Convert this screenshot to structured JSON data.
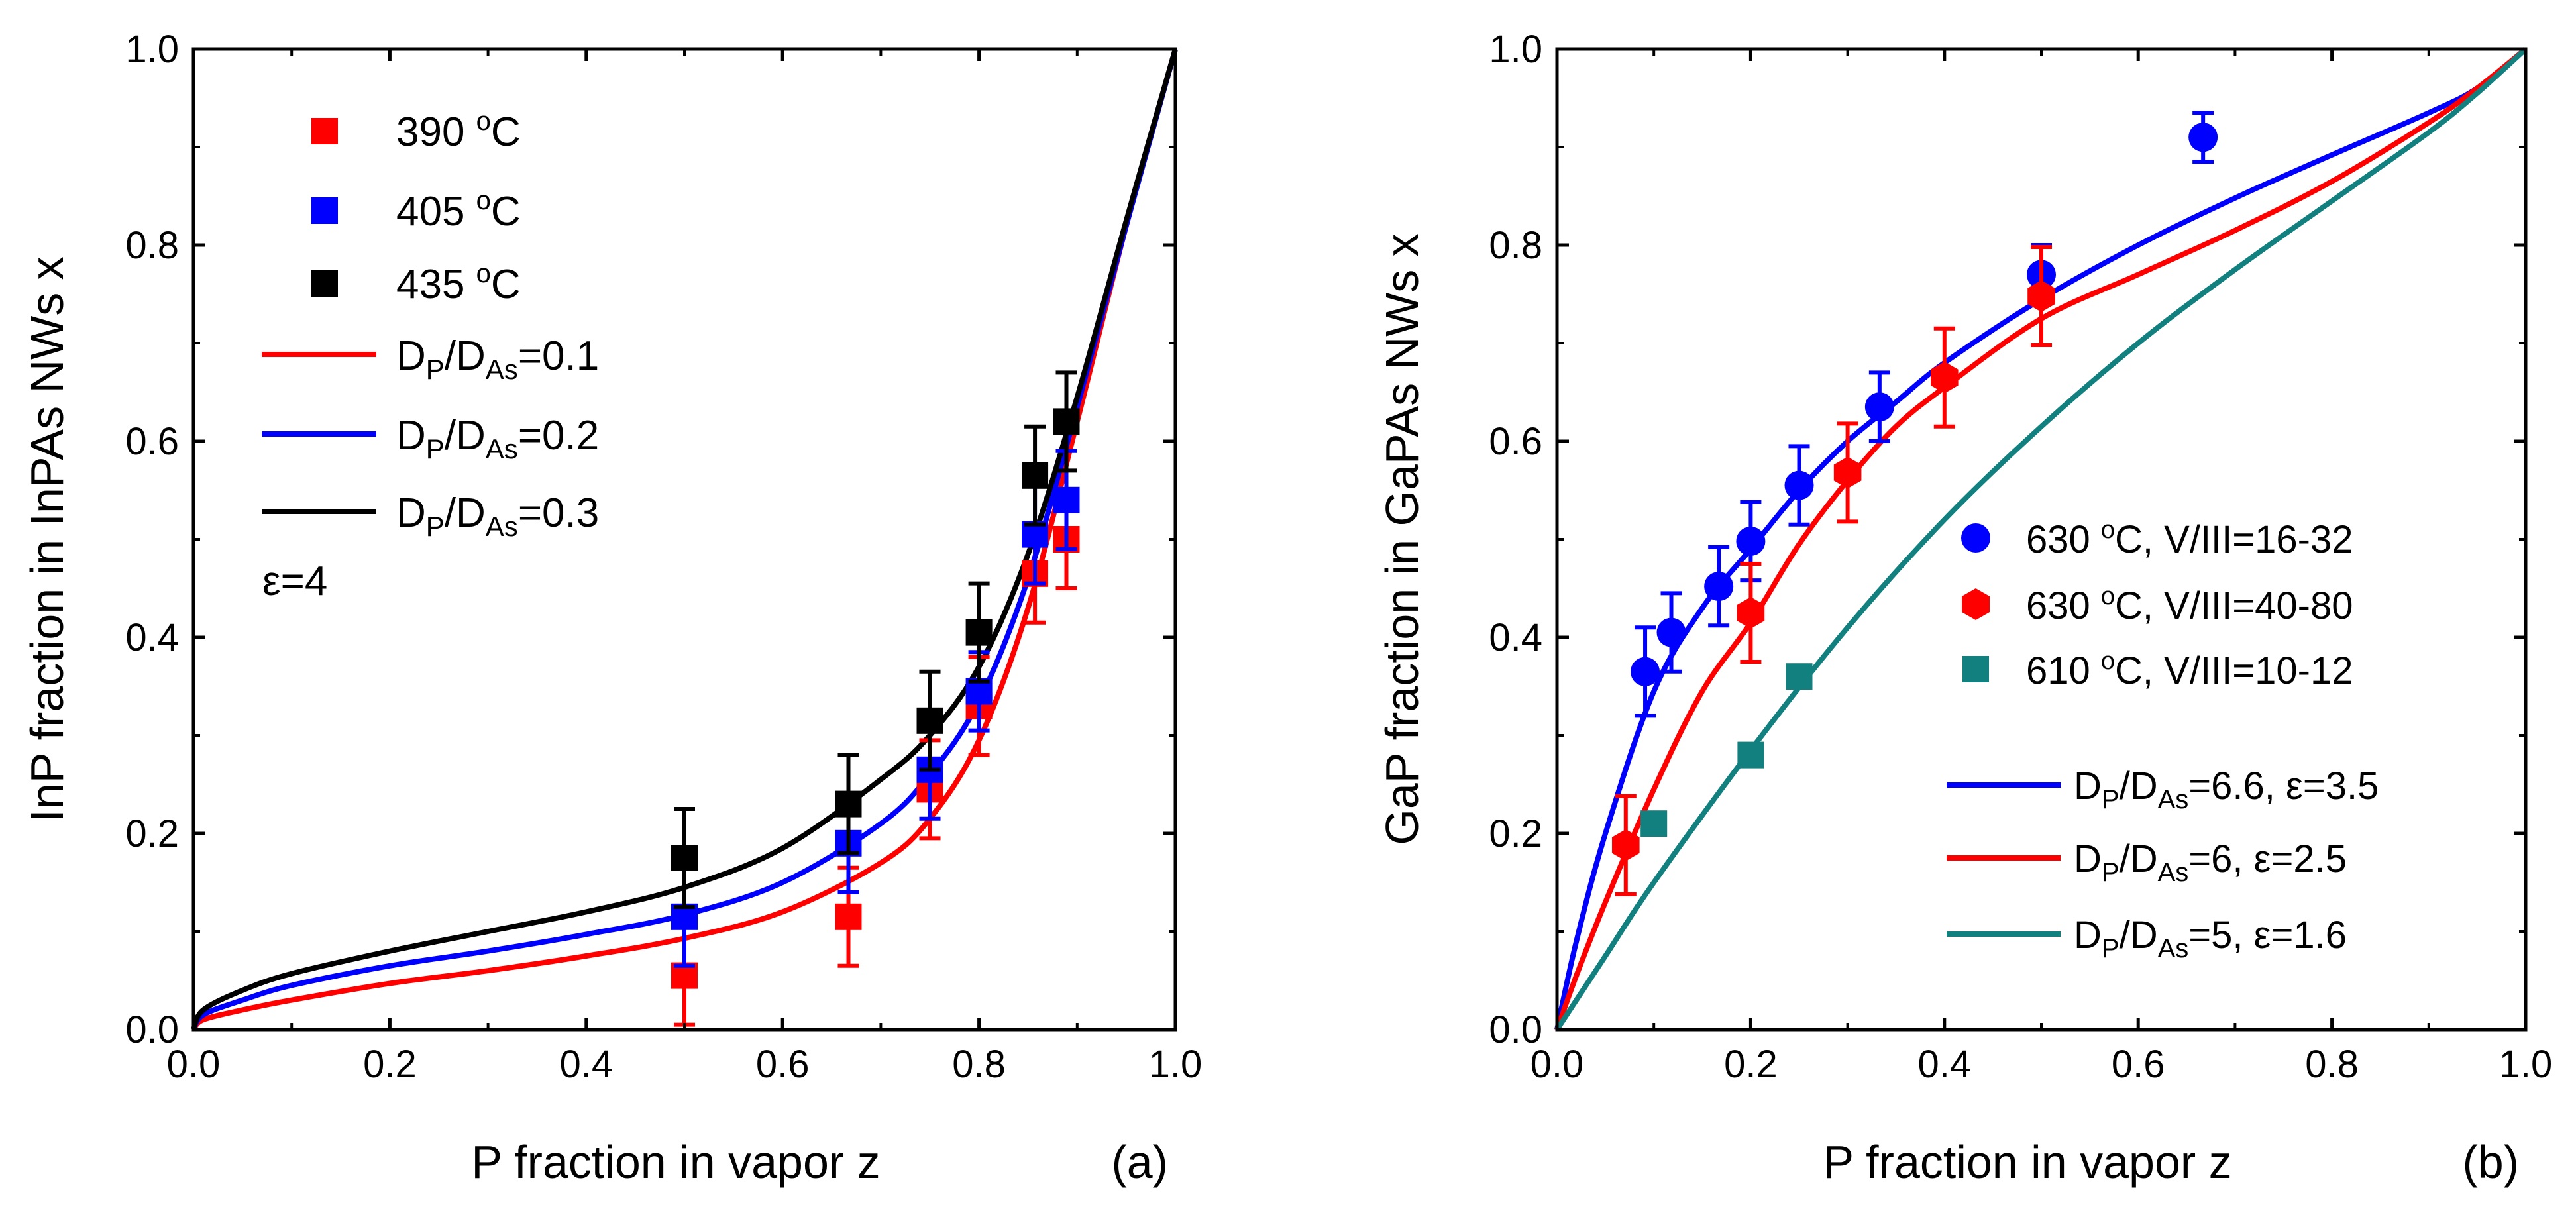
{
  "chart_data": [
    {
      "type": "scatter",
      "panel_label": "(a)",
      "xlabel": "P fraction in vapor z",
      "ylabel": "InP fraction in InPAs NWs x",
      "xlim": [
        0.0,
        1.0
      ],
      "ylim": [
        0.0,
        1.0
      ],
      "xticks": [
        "0.0",
        "0.2",
        "0.4",
        "0.6",
        "0.8",
        "1.0"
      ],
      "yticks": [
        "0.0",
        "0.2",
        "0.4",
        "0.6",
        "0.8",
        "1.0"
      ],
      "legend_position": "top-left",
      "note": {
        "text": "ε=4"
      },
      "series": [
        {
          "name": "390 °C",
          "label_main": "390 ",
          "label_sup": "o",
          "label_tail": "C",
          "color": "#ff0000",
          "marker": "square",
          "x": [
            0.5,
            0.667,
            0.75,
            0.8,
            0.857,
            0.889
          ],
          "y": [
            0.055,
            0.115,
            0.245,
            0.33,
            0.465,
            0.5
          ],
          "err": [
            0.05,
            0.05,
            0.05,
            0.05,
            0.05,
            0.05
          ]
        },
        {
          "name": "405 °C",
          "label_main": "405 ",
          "label_sup": "o",
          "label_tail": "C",
          "color": "#0000ff",
          "marker": "square",
          "x": [
            0.5,
            0.667,
            0.75,
            0.8,
            0.857,
            0.889
          ],
          "y": [
            0.115,
            0.19,
            0.265,
            0.345,
            0.505,
            0.54
          ],
          "err": [
            0.05,
            0.05,
            0.05,
            0.04,
            0.05,
            0.05
          ]
        },
        {
          "name": "435 °C",
          "label_main": "435 ",
          "label_sup": "o",
          "label_tail": "C",
          "color": "#000000",
          "marker": "square",
          "x": [
            0.5,
            0.667,
            0.75,
            0.8,
            0.857,
            0.889
          ],
          "y": [
            0.175,
            0.23,
            0.315,
            0.405,
            0.565,
            0.62
          ],
          "err": [
            0.05,
            0.05,
            0.05,
            0.05,
            0.05,
            0.05
          ]
        }
      ],
      "lines": [
        {
          "name": "DP/DAs=0.1",
          "label_sub1": "P",
          "label_mid": "/D",
          "label_sub2": "As",
          "label_tail": "=0.1",
          "color": "#ff0000",
          "x": [
            0.0,
            0.01,
            0.05,
            0.1,
            0.2,
            0.3,
            0.4,
            0.5,
            0.6,
            0.7,
            0.75,
            0.8,
            0.85,
            0.9,
            0.95,
            1.0
          ],
          "y": [
            0.0,
            0.01,
            0.02,
            0.03,
            0.047,
            0.06,
            0.075,
            0.093,
            0.12,
            0.17,
            0.215,
            0.295,
            0.43,
            0.62,
            0.82,
            1.0
          ]
        },
        {
          "name": "DP/DAs=0.2",
          "label_sub1": "P",
          "label_mid": "/D",
          "label_sub2": "As",
          "label_tail": "=0.2",
          "color": "#0000ff",
          "x": [
            0.0,
            0.01,
            0.05,
            0.1,
            0.2,
            0.3,
            0.4,
            0.5,
            0.6,
            0.7,
            0.75,
            0.8,
            0.85,
            0.9,
            0.95,
            1.0
          ],
          "y": [
            0.0,
            0.015,
            0.03,
            0.045,
            0.065,
            0.08,
            0.097,
            0.117,
            0.15,
            0.21,
            0.26,
            0.335,
            0.46,
            0.635,
            0.82,
            1.0
          ]
        },
        {
          "name": "DP/DAs=0.3",
          "label_sub1": "P",
          "label_mid": "/D",
          "label_sub2": "As",
          "label_tail": "=0.3",
          "color": "#000000",
          "x": [
            0.0,
            0.01,
            0.05,
            0.1,
            0.2,
            0.3,
            0.4,
            0.5,
            0.6,
            0.7,
            0.75,
            0.8,
            0.85,
            0.9,
            0.95,
            1.0
          ],
          "y": [
            0.0,
            0.02,
            0.04,
            0.057,
            0.08,
            0.1,
            0.12,
            0.145,
            0.185,
            0.255,
            0.3,
            0.37,
            0.485,
            0.645,
            0.825,
            1.0
          ]
        }
      ]
    },
    {
      "type": "scatter",
      "panel_label": "(b)",
      "xlabel": "P fraction in vapor z",
      "ylabel": "GaP fraction in GaPAs NWs x",
      "xlim": [
        0.0,
        1.0
      ],
      "ylim": [
        0.0,
        1.0
      ],
      "xticks": [
        "0.0",
        "0.2",
        "0.4",
        "0.6",
        "0.8",
        "1.0"
      ],
      "yticks": [
        "0.0",
        "0.2",
        "0.4",
        "0.6",
        "0.8",
        "1.0"
      ],
      "legend_position": "bottom-right",
      "series": [
        {
          "name": "630 °C, V/III=16-32",
          "label_main": "630 ",
          "label_sup": "o",
          "label_tail": "C,  V/III=16-32",
          "color": "#0000ff",
          "marker": "circle",
          "x": [
            0.091,
            0.118,
            0.167,
            0.2,
            0.25,
            0.333,
            0.5,
            0.667
          ],
          "y": [
            0.365,
            0.405,
            0.452,
            0.498,
            0.555,
            0.635,
            0.77,
            0.91
          ],
          "err": [
            0.045,
            0.04,
            0.04,
            0.04,
            0.04,
            0.035,
            0.03,
            0.025
          ]
        },
        {
          "name": "630 °C, V/III=40-80",
          "label_main": "630 ",
          "label_sup": "o",
          "label_tail": "C, V/III=40-80",
          "color": "#ff0000",
          "marker": "hexagon",
          "x": [
            0.071,
            0.2,
            0.3,
            0.4,
            0.5
          ],
          "y": [
            0.188,
            0.425,
            0.568,
            0.665,
            0.748
          ],
          "err": [
            0.05,
            0.05,
            0.05,
            0.05,
            0.05
          ]
        },
        {
          "name": "610 °C, V/III=10-12",
          "label_main": "610 ",
          "label_sup": "o",
          "label_tail": "C,  V/III=10-12",
          "color": "#138080",
          "marker": "square",
          "x": [
            0.1,
            0.2,
            0.25
          ],
          "y": [
            0.21,
            0.28,
            0.36
          ],
          "err": [
            0,
            0,
            0
          ]
        }
      ],
      "lines": [
        {
          "name": "DP/DAs=6.6, ε=3.5",
          "label_sub1": "P",
          "label_mid": "/D",
          "label_sub2": "As",
          "label_tail": "=6.6, ε=3.5",
          "color": "#0000ff",
          "x": [
            0.0,
            0.02,
            0.05,
            0.1,
            0.15,
            0.2,
            0.25,
            0.3,
            0.35,
            0.4,
            0.5,
            0.6,
            0.7,
            0.8,
            0.9,
            0.95,
            1.0
          ],
          "y": [
            0.0,
            0.09,
            0.2,
            0.345,
            0.43,
            0.49,
            0.55,
            0.6,
            0.64,
            0.68,
            0.745,
            0.8,
            0.848,
            0.892,
            0.935,
            0.96,
            1.0
          ]
        },
        {
          "name": "DP/DAs=6, ε=2.5",
          "label_sub1": "P",
          "label_mid": "/D",
          "label_sub2": "As",
          "label_tail": "=6, ε=2.5",
          "color": "#ff0000",
          "x": [
            0.0,
            0.02,
            0.05,
            0.1,
            0.15,
            0.2,
            0.25,
            0.3,
            0.35,
            0.4,
            0.5,
            0.6,
            0.7,
            0.8,
            0.9,
            0.95,
            1.0
          ],
          "y": [
            0.0,
            0.055,
            0.13,
            0.245,
            0.345,
            0.415,
            0.495,
            0.56,
            0.615,
            0.655,
            0.725,
            0.77,
            0.815,
            0.865,
            0.925,
            0.96,
            1.0
          ]
        },
        {
          "name": "DP/DAs=5, ε=1.6",
          "label_sub1": "P",
          "label_mid": "/D",
          "label_sub2": "As",
          "label_tail": "=5, ε=1.6",
          "color": "#138080",
          "x": [
            0.0,
            0.05,
            0.1,
            0.2,
            0.3,
            0.4,
            0.5,
            0.6,
            0.7,
            0.8,
            0.9,
            0.95,
            1.0
          ],
          "y": [
            0.0,
            0.075,
            0.15,
            0.285,
            0.41,
            0.52,
            0.615,
            0.7,
            0.775,
            0.845,
            0.915,
            0.955,
            1.0
          ]
        }
      ]
    }
  ]
}
